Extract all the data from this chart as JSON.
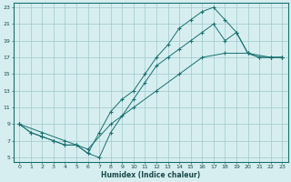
{
  "xlabel": "Humidex (Indice chaleur)",
  "bg_color": "#d6eef0",
  "grid_color": "#a0c8cc",
  "line_color": "#1a7070",
  "marker": "+",
  "xlim": [
    -0.5,
    23.5
  ],
  "ylim": [
    4.5,
    23.5
  ],
  "xticks": [
    0,
    1,
    2,
    3,
    4,
    5,
    6,
    7,
    8,
    9,
    10,
    11,
    12,
    13,
    14,
    15,
    16,
    17,
    18,
    19,
    20,
    21,
    22,
    23
  ],
  "yticks": [
    5,
    7,
    9,
    11,
    13,
    15,
    17,
    19,
    21,
    23
  ],
  "line1_x": [
    0,
    1,
    2,
    3,
    4,
    5,
    6,
    7,
    8,
    9,
    10,
    11,
    12,
    13,
    14,
    15,
    16,
    17,
    18,
    19,
    20,
    21,
    22,
    23
  ],
  "line1_y": [
    9,
    8,
    7.5,
    7,
    6.5,
    6.5,
    5.5,
    5,
    8,
    10,
    12,
    14,
    16,
    17,
    18,
    19,
    20,
    21,
    19,
    20,
    17.5,
    17,
    17,
    17
  ],
  "line2_x": [
    0,
    1,
    2,
    3,
    4,
    5,
    6,
    7,
    8,
    9,
    10,
    11,
    12,
    13,
    14,
    15,
    16,
    17,
    18,
    19,
    20,
    21,
    22,
    23
  ],
  "line2_y": [
    9,
    8,
    7.5,
    7,
    6.5,
    6.5,
    5.5,
    8,
    10.5,
    12,
    13,
    15,
    17,
    18.5,
    20.5,
    21.5,
    22.5,
    23,
    21.5,
    20,
    17.5,
    17,
    17,
    17
  ],
  "line3_x": [
    0,
    2,
    4,
    6,
    8,
    10,
    12,
    14,
    16,
    18,
    20,
    22,
    23
  ],
  "line3_y": [
    9,
    8,
    7,
    6,
    9,
    11,
    13,
    15,
    17,
    17.5,
    17.5,
    17,
    17
  ]
}
